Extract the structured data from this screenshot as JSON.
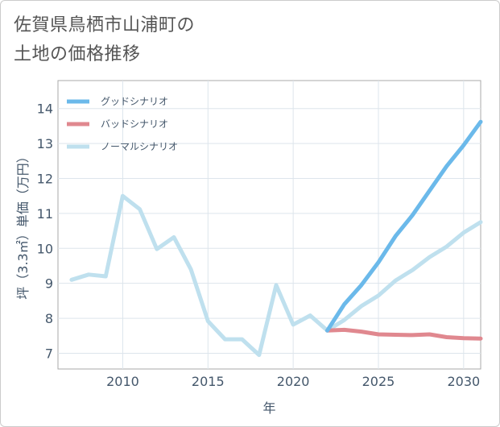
{
  "title": {
    "line1": "佐賀県鳥栖市山浦町の",
    "line2": "土地の価格推移"
  },
  "chart_data": {
    "type": "line",
    "xlabel": "年",
    "ylabel": "坪（3.3㎡）単価（万円）",
    "xlim": [
      2006.2,
      2031
    ],
    "ylim": [
      6.55,
      14.8
    ],
    "x_ticks": [
      2010,
      2015,
      2020,
      2025,
      2030
    ],
    "y_ticks": [
      7,
      8,
      9,
      10,
      11,
      12,
      13,
      14
    ],
    "grid": true,
    "legend_position": "top-left",
    "series": [
      {
        "name": "グッドシナリオ",
        "color": "#6bb9ea",
        "x": [
          2022,
          2023,
          2024,
          2025,
          2026,
          2027,
          2028,
          2029,
          2030,
          2031
        ],
        "values": [
          7.65,
          8.4,
          8.95,
          9.6,
          10.35,
          10.95,
          11.65,
          12.35,
          12.95,
          13.62
        ]
      },
      {
        "name": "バッドシナリオ",
        "color": "#e0888f",
        "x": [
          2022,
          2023,
          2024,
          2025,
          2026,
          2027,
          2028,
          2029,
          2030,
          2031
        ],
        "values": [
          7.65,
          7.67,
          7.62,
          7.54,
          7.53,
          7.52,
          7.54,
          7.46,
          7.43,
          7.42
        ]
      },
      {
        "name": "ノーマルシナリオ",
        "color": "#bfe0ee",
        "x": [
          2007,
          2008,
          2009,
          2010,
          2011,
          2012,
          2013,
          2014,
          2015,
          2016,
          2017,
          2018,
          2019,
          2020,
          2021,
          2022,
          2023,
          2024,
          2025,
          2026,
          2027,
          2028,
          2029,
          2030,
          2031
        ],
        "values": [
          9.1,
          9.25,
          9.2,
          11.5,
          11.12,
          9.98,
          10.32,
          9.4,
          7.92,
          7.4,
          7.4,
          6.95,
          8.95,
          7.82,
          8.08,
          7.65,
          7.95,
          8.35,
          8.65,
          9.08,
          9.38,
          9.75,
          10.05,
          10.45,
          10.75
        ]
      }
    ]
  }
}
